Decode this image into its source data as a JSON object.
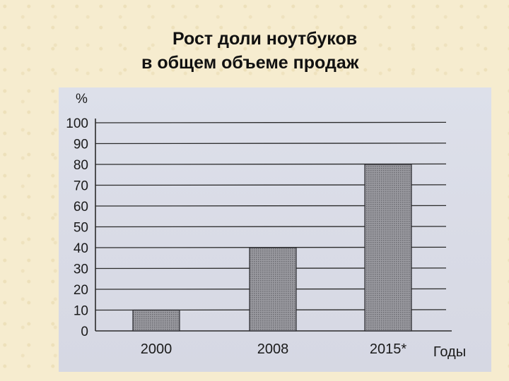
{
  "slide": {
    "title_line1": "Рост доли ноутбуков",
    "title_line2": "в общем объеме продаж"
  },
  "colors": {
    "background": "#f6eccf",
    "chart_background": "#dcdfe9",
    "bar_fill": "#8f8f95",
    "grid": "#2b2b2b"
  },
  "chart_data": {
    "type": "bar",
    "categories": [
      "2000",
      "2008",
      "2015*"
    ],
    "values": [
      10,
      40,
      80
    ],
    "ylabel": "%",
    "xlabel": "Годы",
    "ylim": [
      0,
      100
    ],
    "yticks": [
      0,
      10,
      20,
      30,
      40,
      50,
      60,
      70,
      80,
      90,
      100
    ],
    "grid": true,
    "legend": "none"
  }
}
